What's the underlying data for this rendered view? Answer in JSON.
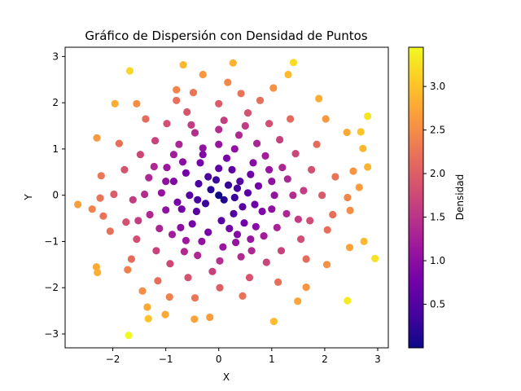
{
  "chart_data": {
    "type": "scatter",
    "title": "Gráfico de Dispersión con Densidad de Puntos",
    "xlabel": "X",
    "ylabel": "Y",
    "xlim": [
      -2.9,
      3.2
    ],
    "ylim": [
      -3.3,
      3.2
    ],
    "xticks": [
      -2,
      -1,
      0,
      1,
      2,
      3
    ],
    "yticks": [
      -3,
      -2,
      -1,
      0,
      1,
      2,
      3
    ],
    "grid": false,
    "colorbar": {
      "label": "Densidad",
      "colormap": "plasma",
      "min": 0.0,
      "max": 3.45,
      "ticks": [
        0.5,
        1.0,
        1.5,
        2.0,
        2.5,
        3.0
      ]
    },
    "marker_color_by": "distance from origin",
    "points": [
      [
        -1.68,
        2.69
      ],
      [
        0.27,
        2.86
      ],
      [
        1.41,
        2.87
      ],
      [
        -0.67,
        2.82
      ],
      [
        -0.3,
        2.61
      ],
      [
        1.31,
        2.61
      ],
      [
        -1.96,
        1.98
      ],
      [
        -1.55,
        1.98
      ],
      [
        -0.8,
        2.28
      ],
      [
        0.17,
        2.44
      ],
      [
        1.03,
        2.32
      ],
      [
        1.89,
        2.09
      ],
      [
        2.81,
        1.71
      ],
      [
        -2.3,
        1.24
      ],
      [
        2.02,
        1.65
      ],
      [
        2.68,
        1.37
      ],
      [
        2.42,
        1.36
      ],
      [
        2.72,
        1.01
      ],
      [
        2.81,
        0.61
      ],
      [
        2.54,
        0.52
      ],
      [
        2.65,
        0.17
      ],
      [
        -2.66,
        -0.2
      ],
      [
        -2.39,
        -0.3
      ],
      [
        -2.24,
        -0.06
      ],
      [
        2.48,
        -0.33
      ],
      [
        2.43,
        -0.05
      ],
      [
        2.74,
        -1.0
      ],
      [
        2.95,
        -1.37
      ],
      [
        2.04,
        -1.5
      ],
      [
        2.47,
        -1.13
      ],
      [
        -2.31,
        -1.55
      ],
      [
        -2.29,
        -1.67
      ],
      [
        -1.72,
        -1.61
      ],
      [
        -1.44,
        -2.07
      ],
      [
        -1.35,
        -2.42
      ],
      [
        -1.33,
        -2.67
      ],
      [
        -1.01,
        -2.58
      ],
      [
        -0.93,
        -2.2
      ],
      [
        -0.46,
        -2.68
      ],
      [
        -0.17,
        -2.64
      ],
      [
        1.04,
        -2.73
      ],
      [
        1.49,
        -2.29
      ],
      [
        2.43,
        -2.28
      ],
      [
        1.65,
        -1.99
      ],
      [
        -1.7,
        -3.03
      ],
      [
        0.0,
        0.0
      ],
      [
        0.1,
        -0.1
      ],
      [
        -0.15,
        0.12
      ],
      [
        0.18,
        0.22
      ],
      [
        -0.25,
        -0.18
      ],
      [
        0.3,
        -0.05
      ],
      [
        -0.05,
        0.33
      ],
      [
        0.4,
        0.3
      ],
      [
        -0.38,
        0.25
      ],
      [
        0.28,
        -0.4
      ],
      [
        -0.42,
        -0.35
      ],
      [
        0.55,
        0.05
      ],
      [
        -0.55,
        0.0
      ],
      [
        0.05,
        -0.55
      ],
      [
        0.0,
        0.58
      ],
      [
        0.6,
        0.45
      ],
      [
        -0.62,
        0.48
      ],
      [
        0.48,
        -0.6
      ],
      [
        -0.5,
        -0.62
      ],
      [
        0.75,
        0.2
      ],
      [
        -0.78,
        -0.15
      ],
      [
        0.15,
        0.8
      ],
      [
        -0.2,
        -0.8
      ],
      [
        0.82,
        -0.35
      ],
      [
        -0.85,
        0.3
      ],
      [
        0.35,
        -0.85
      ],
      [
        -0.3,
        0.88
      ],
      [
        0.95,
        0.55
      ],
      [
        -0.98,
        0.6
      ],
      [
        0.6,
        -0.95
      ],
      [
        -0.62,
        -0.98
      ],
      [
        1.05,
        0.0
      ],
      [
        -1.08,
        0.05
      ],
      [
        0.0,
        1.1
      ],
      [
        0.08,
        -1.12
      ],
      [
        1.1,
        -0.7
      ],
      [
        -1.12,
        -0.72
      ],
      [
        0.72,
        1.12
      ],
      [
        -0.75,
        1.1
      ],
      [
        1.3,
        0.35
      ],
      [
        -1.32,
        0.38
      ],
      [
        0.38,
        1.3
      ],
      [
        -0.4,
        -1.3
      ],
      [
        1.28,
        -0.4
      ],
      [
        -1.3,
        -0.42
      ],
      [
        0.42,
        -1.33
      ],
      [
        -0.45,
        1.35
      ],
      [
        1.45,
        0.9
      ],
      [
        -1.48,
        0.88
      ],
      [
        0.9,
        -1.45
      ],
      [
        -0.92,
        -1.48
      ],
      [
        1.6,
        0.1
      ],
      [
        -1.62,
        -0.1
      ],
      [
        0.1,
        1.62
      ],
      [
        -0.12,
        -1.65
      ],
      [
        1.55,
        -0.95
      ],
      [
        -1.55,
        -0.95
      ],
      [
        0.95,
        1.55
      ],
      [
        -0.98,
        1.55
      ],
      [
        1.75,
        0.55
      ],
      [
        -1.78,
        0.55
      ],
      [
        0.55,
        1.78
      ],
      [
        -0.58,
        -1.78
      ],
      [
        1.72,
        -0.55
      ],
      [
        -1.75,
        -0.58
      ],
      [
        0.58,
        -1.78
      ],
      [
        -0.6,
        1.8
      ],
      [
        1.85,
        1.1
      ],
      [
        -1.88,
        1.12
      ],
      [
        1.12,
        -1.88
      ],
      [
        -1.15,
        -1.85
      ],
      [
        1.95,
        0.0
      ],
      [
        -1.98,
        0.02
      ],
      [
        0.0,
        1.98
      ],
      [
        0.02,
        -2.0
      ],
      [
        2.05,
        -0.75
      ],
      [
        -2.05,
        -0.78
      ],
      [
        0.78,
        2.05
      ],
      [
        -0.8,
        2.05
      ],
      [
        1.35,
        1.65
      ],
      [
        -1.38,
        1.65
      ],
      [
        1.65,
        -1.38
      ],
      [
        -1.65,
        -1.38
      ],
      [
        2.2,
        0.4
      ],
      [
        -2.22,
        0.42
      ],
      [
        0.42,
        2.2
      ],
      [
        -0.45,
        -2.22
      ],
      [
        2.15,
        -0.42
      ],
      [
        -2.18,
        -0.45
      ],
      [
        0.45,
        -2.18
      ],
      [
        -0.48,
        2.22
      ],
      [
        0.25,
        0.55
      ],
      [
        -0.35,
        0.7
      ],
      [
        0.68,
        -0.2
      ],
      [
        -0.7,
        -0.3
      ],
      [
        0.2,
        -0.72
      ],
      [
        0.88,
        0.85
      ],
      [
        -0.88,
        -0.85
      ],
      [
        0.85,
        -0.88
      ],
      [
        -0.85,
        0.88
      ],
      [
        1.2,
        0.6
      ],
      [
        -1.22,
        0.62
      ],
      [
        0.62,
        -1.2
      ],
      [
        -0.65,
        -1.22
      ],
      [
        1.15,
        1.2
      ],
      [
        -1.18,
        -1.2
      ],
      [
        1.18,
        -1.2
      ],
      [
        -1.2,
        1.18
      ],
      [
        0.5,
        1.5
      ],
      [
        -0.52,
        1.52
      ],
      [
        1.5,
        -0.52
      ],
      [
        -1.52,
        -0.55
      ],
      [
        1.4,
        0.0
      ],
      [
        -1.4,
        0.02
      ],
      [
        0.0,
        1.42
      ],
      [
        0.02,
        -1.42
      ],
      [
        0.35,
        0.15
      ],
      [
        -0.2,
        0.4
      ],
      [
        0.45,
        -0.25
      ],
      [
        -0.4,
        -0.1
      ],
      [
        0.65,
        0.7
      ],
      [
        -0.68,
        0.72
      ],
      [
        0.7,
        -0.68
      ],
      [
        -0.72,
        -0.7
      ],
      [
        1.0,
        0.3
      ],
      [
        -1.0,
        0.3
      ],
      [
        0.3,
        1.0
      ],
      [
        -0.32,
        -1.0
      ],
      [
        1.0,
        -0.3
      ],
      [
        -1.0,
        -0.32
      ],
      [
        0.32,
        -1.02
      ],
      [
        -0.3,
        1.02
      ]
    ]
  }
}
